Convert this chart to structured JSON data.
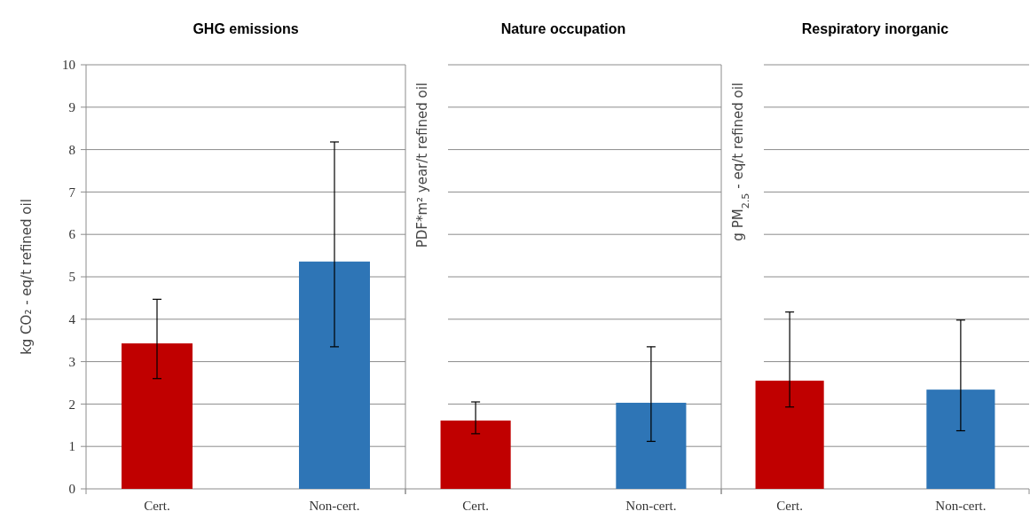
{
  "chart_data": [
    {
      "type": "bar",
      "title": "GHG emissions",
      "ylabel": "kg CO₂ - eq/t refined oil",
      "categories": [
        "Cert.",
        "Non-cert."
      ],
      "values": [
        3.43,
        5.36
      ],
      "colors": [
        "#c00000",
        "#2e75b6"
      ],
      "errors": [
        [
          2.6,
          4.47
        ],
        [
          3.35,
          8.18
        ]
      ],
      "ylim": [
        0,
        10
      ],
      "yticks": [
        0,
        1,
        2,
        3,
        4,
        5,
        6,
        7,
        8,
        9,
        10
      ],
      "grid": "y"
    },
    {
      "type": "bar",
      "title": "Nature occupation",
      "ylabel": "PDF*m² year/t refined oil",
      "categories": [
        "Cert.",
        "Non-cert."
      ],
      "values": [
        1.61,
        2.03
      ],
      "colors": [
        "#c00000",
        "#2e75b6"
      ],
      "errors": [
        [
          1.3,
          2.05
        ],
        [
          1.12,
          3.35
        ]
      ],
      "ylim": [
        0,
        10
      ],
      "yticks": [
        0,
        1,
        2,
        3,
        4,
        5,
        6,
        7,
        8,
        9,
        10
      ],
      "grid": "y",
      "tick_labels": "x"
    },
    {
      "type": "bar",
      "title": "Respiratory inorganic",
      "ylabel": "g PM$_{2.5}$ - eq/t refined oil",
      "categories": [
        "Cert.",
        "Non-cert."
      ],
      "values": [
        2.55,
        2.34
      ],
      "colors": [
        "#c00000",
        "#2e75b6"
      ],
      "errors": [
        [
          1.93,
          4.17
        ],
        [
          1.37,
          3.98
        ]
      ],
      "ylim": [
        0,
        10
      ],
      "yticks": [
        0,
        1,
        2,
        3,
        4,
        5,
        6,
        7,
        8,
        9,
        10
      ],
      "grid": "y",
      "tick_labels": "x"
    }
  ]
}
